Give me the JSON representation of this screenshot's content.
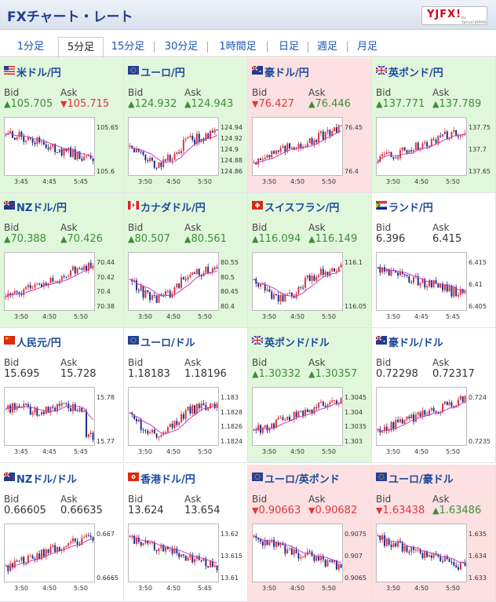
{
  "header": {
    "title": "FXチャート・レート",
    "logo_text": "YJFX!",
    "logo_sub": "by Yahoo!JAPAN"
  },
  "tabs": [
    {
      "label": "1分足",
      "active": false
    },
    {
      "label": "5分足",
      "active": true
    },
    {
      "label": "15分足",
      "active": false
    },
    {
      "label": "30分足",
      "active": false
    },
    {
      "label": "1時間足",
      "active": false
    },
    {
      "label": "日足",
      "active": false
    },
    {
      "label": "週足",
      "active": false
    },
    {
      "label": "月足",
      "active": false
    }
  ],
  "colors": {
    "up_bg": "#e1f7dc",
    "down_bg": "#fde0e1",
    "up_text": "#3b8f35",
    "down_text": "#e0363c",
    "link": "#1a55b5",
    "candle_up": "#e0363c",
    "candle_down": "#1e2f8a",
    "ma_line": "#c040c0",
    "ma_line2": "#3aa0c8"
  },
  "labels": {
    "bid": "Bid",
    "ask": "Ask"
  },
  "pairs": [
    {
      "name": "米ドル/円",
      "flag": "us-flag",
      "bg": "up",
      "bid": "105.705",
      "bid_dir": "up",
      "ask": "105.715",
      "ask_dir": "down",
      "yticks": [
        "105.65",
        "105.6"
      ],
      "xticks": [
        "3:45",
        "4:45",
        "5:45"
      ],
      "trend": "down"
    },
    {
      "name": "ユーロ/円",
      "flag": "eu-flag",
      "bg": "up",
      "bid": "124.932",
      "bid_dir": "up",
      "ask": "124.943",
      "ask_dir": "up",
      "yticks": [
        "124.94",
        "124.92",
        "124.9",
        "124.88",
        "124.86"
      ],
      "xticks": [
        "3:50",
        "4:50",
        "5:50"
      ],
      "trend": "dipup"
    },
    {
      "name": "豪ドル/円",
      "flag": "au-flag",
      "bg": "down",
      "bid": "76.427",
      "bid_dir": "down",
      "ask": "76.446",
      "ask_dir": "up",
      "yticks": [
        "76.45",
        "76.4"
      ],
      "xticks": [
        "3:50",
        "4:50",
        "5:50"
      ],
      "trend": "up"
    },
    {
      "name": "英ポンド/円",
      "flag": "gb-flag",
      "bg": "up",
      "bid": "137.771",
      "bid_dir": "up",
      "ask": "137.789",
      "ask_dir": "up",
      "yticks": [
        "137.75",
        "137.7",
        "137.65"
      ],
      "xticks": [
        "3:50",
        "4:50",
        "5:50"
      ],
      "trend": "up"
    },
    {
      "name": "NZドル/円",
      "flag": "nz-flag",
      "bg": "up",
      "bid": "70.388",
      "bid_dir": "up",
      "ask": "70.426",
      "ask_dir": "up",
      "yticks": [
        "70.44",
        "70.42",
        "70.4",
        "70.38"
      ],
      "xticks": [
        "3:50",
        "4:50",
        "5:50"
      ],
      "trend": "up"
    },
    {
      "name": "カナダドル/円",
      "flag": "ca-flag",
      "bg": "up",
      "bid": "80.507",
      "bid_dir": "up",
      "ask": "80.561",
      "ask_dir": "up",
      "yticks": [
        "80.55",
        "80.5",
        "80.45",
        "80.4"
      ],
      "xticks": [
        "3:50",
        "4:50",
        "5:50"
      ],
      "trend": "dipup"
    },
    {
      "name": "スイスフラン/円",
      "flag": "ch-flag",
      "bg": "up",
      "bid": "116.094",
      "bid_dir": "up",
      "ask": "116.149",
      "ask_dir": "up",
      "yticks": [
        "116.1",
        "116.05"
      ],
      "xticks": [
        "3:50",
        "4:50",
        "5:50"
      ],
      "trend": "dipup"
    },
    {
      "name": "ランド/円",
      "flag": "za-flag",
      "bg": "flat",
      "bid": "6.396",
      "bid_dir": "flat",
      "ask": "6.415",
      "ask_dir": "flat",
      "yticks": [
        "6.415",
        "6.41",
        "6.405"
      ],
      "xticks": [
        "3:50",
        "4:45",
        "5:45"
      ],
      "trend": "down"
    },
    {
      "name": "人民元/円",
      "flag": "cn-flag",
      "bg": "flat",
      "bid": "15.695",
      "bid_dir": "flat",
      "ask": "15.728",
      "ask_dir": "flat",
      "yticks": [
        "15.78",
        "15.77"
      ],
      "xticks": [
        "3:45",
        "4:45",
        "5:45"
      ],
      "trend": "flatdrop"
    },
    {
      "name": "ユーロ/ドル",
      "flag": "eu-flag",
      "bg": "flat",
      "bid": "1.18183",
      "bid_dir": "flat",
      "ask": "1.18196",
      "ask_dir": "flat",
      "yticks": [
        "1.183",
        "1.1828",
        "1.1826",
        "1.1824"
      ],
      "xticks": [
        "3:50",
        "4:50",
        "5:50"
      ],
      "trend": "dipup"
    },
    {
      "name": "英ポンド/ドル",
      "flag": "gb-flag",
      "bg": "up",
      "bid": "1.30332",
      "bid_dir": "up",
      "ask": "1.30357",
      "ask_dir": "up",
      "yticks": [
        "1.3045",
        "1.304",
        "1.3035",
        "1.303"
      ],
      "xticks": [
        "3:50",
        "4:50",
        "5:50"
      ],
      "trend": "up"
    },
    {
      "name": "豪ドル/ドル",
      "flag": "au-flag",
      "bg": "flat",
      "bid": "0.72298",
      "bid_dir": "flat",
      "ask": "0.72317",
      "ask_dir": "flat",
      "yticks": [
        "0.724",
        "0.7235"
      ],
      "xticks": [
        "3:50",
        "4:50",
        "5:50"
      ],
      "trend": "up"
    },
    {
      "name": "NZドル/ドル",
      "flag": "nz-flag",
      "bg": "flat",
      "bid": "0.66605",
      "bid_dir": "flat",
      "ask": "0.66635",
      "ask_dir": "flat",
      "yticks": [
        "0.667",
        "0.6665"
      ],
      "xticks": [
        "3:50",
        "4:50",
        "5:50"
      ],
      "trend": "up"
    },
    {
      "name": "香港ドル/円",
      "flag": "hk-flag",
      "bg": "flat",
      "bid": "13.624",
      "bid_dir": "flat",
      "ask": "13.654",
      "ask_dir": "flat",
      "yticks": [
        "13.62",
        "13.615",
        "13.61"
      ],
      "xticks": [
        "3:50",
        "4:50",
        "5:45"
      ],
      "trend": "down"
    },
    {
      "name": "ユーロ/英ポンド",
      "flag": "eu-flag",
      "bg": "down",
      "bid": "0.90663",
      "bid_dir": "down",
      "ask": "0.90682",
      "ask_dir": "down",
      "yticks": [
        "0.9075",
        "0.907",
        "0.9065"
      ],
      "xticks": [
        "3:50",
        "4:50",
        "5:50"
      ],
      "trend": "down"
    },
    {
      "name": "ユーロ/豪ドル",
      "flag": "eu-flag",
      "bg": "down",
      "bid": "1.63438",
      "bid_dir": "down",
      "ask": "1.63486",
      "ask_dir": "up",
      "yticks": [
        "1.635",
        "1.634",
        "1.633"
      ],
      "xticks": [
        "3:50",
        "4:50",
        "5:50"
      ],
      "trend": "down"
    }
  ]
}
